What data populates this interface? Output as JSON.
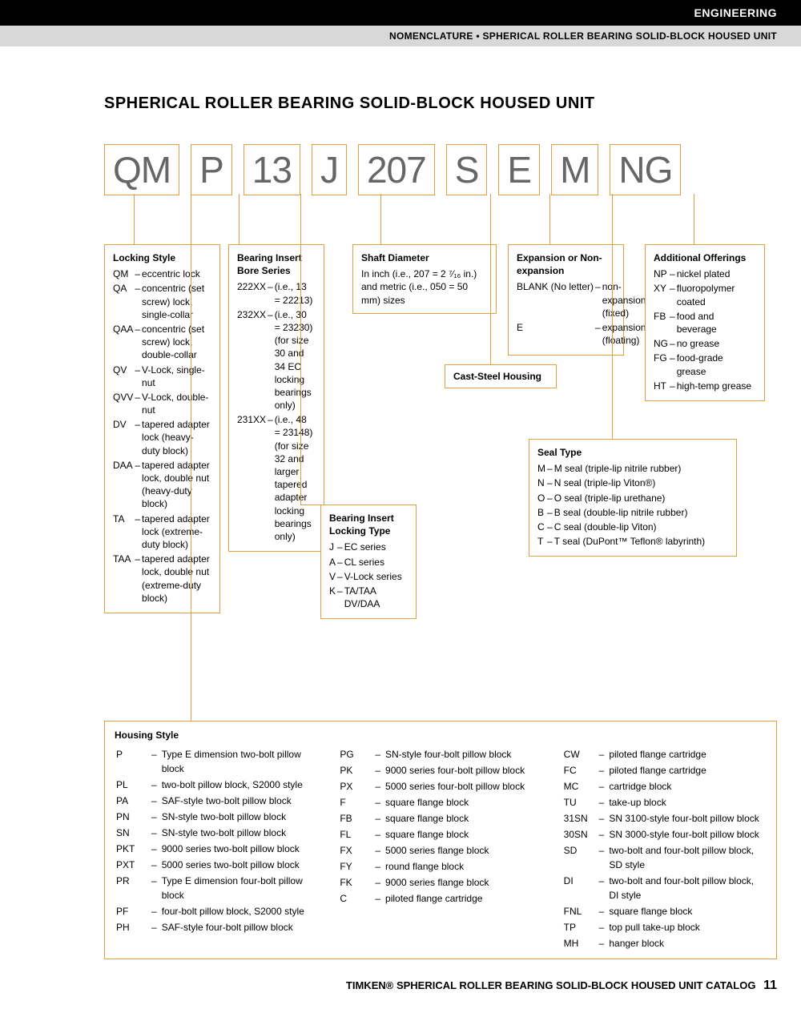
{
  "header": {
    "black": "ENGINEERING",
    "gray": "NOMENCLATURE • SPHERICAL ROLLER BEARING SOLID-BLOCK HOUSED UNIT"
  },
  "main_title": "SPHERICAL ROLLER BEARING SOLID-BLOCK HOUSED UNIT",
  "code_boxes": [
    "QM",
    "P",
    "13",
    "J",
    "207",
    "S",
    "E",
    "M",
    "NG"
  ],
  "colors": {
    "accent": "#e0a040",
    "code_text": "#666666"
  },
  "callouts": {
    "locking_style": {
      "title": "Locking Style",
      "items": [
        [
          "QM",
          "eccentric lock"
        ],
        [
          "QA",
          "concentric (set screw) lock, single-collar"
        ],
        [
          "QAA",
          "concentric (set screw) lock, double-collar"
        ],
        [
          "QV",
          "V-Lock, single-nut"
        ],
        [
          "QVV",
          "V-Lock, double-nut"
        ],
        [
          "DV",
          "tapered adapter lock (heavy-duty block)"
        ],
        [
          "DAA",
          "tapered adapter lock, double nut (heavy-duty block)"
        ],
        [
          "TA",
          "tapered adapter lock (extreme-duty block)"
        ],
        [
          "TAA",
          "tapered adapter lock, double nut (extreme-duty block)"
        ]
      ]
    },
    "bore_series": {
      "title": "Bearing Insert Bore Series",
      "items": [
        [
          "222XX",
          "(i.e., 13 = 22213)"
        ],
        [
          "232XX",
          "(i.e., 30 = 23230) (for size 30 and 34 EC locking bearings only)"
        ],
        [
          "231XX",
          "(i.e., 48 = 23148) (for size 32 and larger tapered adapter locking bearings only)"
        ]
      ]
    },
    "shaft_diameter": {
      "title": "Shaft Diameter",
      "text": "In inch (i.e., 207 = 2 ⁷⁄₁₆ in.) and metric (i.e., 050 = 50 mm) sizes"
    },
    "expansion": {
      "title": "Expansion or Non-expansion",
      "items": [
        [
          "BLANK (No letter)",
          "non-expansion (fixed)"
        ],
        [
          "E",
          "expansion (floating)"
        ]
      ]
    },
    "additional": {
      "title": "Additional Offerings",
      "items": [
        [
          "NP",
          "nickel plated"
        ],
        [
          "XY",
          "fluoropolymer coated"
        ],
        [
          "FB",
          "food and beverage"
        ],
        [
          "NG",
          "no grease"
        ],
        [
          "FG",
          "food-grade grease"
        ],
        [
          "HT",
          "high-temp grease"
        ]
      ]
    },
    "cast_steel": {
      "title": "Cast-Steel Housing"
    },
    "seal_type": {
      "title": "Seal Type",
      "items": [
        [
          "M",
          "M seal (triple-lip nitrile rubber)"
        ],
        [
          "N",
          "N seal (triple-lip Viton®)"
        ],
        [
          "O",
          "O seal (triple-lip urethane)"
        ],
        [
          "B",
          "B seal (double-lip nitrile rubber)"
        ],
        [
          "C",
          "C seal (double-lip Viton)"
        ],
        [
          "T",
          "T seal (DuPont™ Teflon® labyrinth)"
        ]
      ]
    },
    "locking_type": {
      "title": "Bearing Insert Locking Type",
      "items": [
        [
          "J",
          "EC series"
        ],
        [
          "A",
          "CL series"
        ],
        [
          "V",
          "V-Lock series"
        ],
        [
          "K",
          "TA/TAA DV/DAA"
        ]
      ]
    },
    "housing_style": {
      "title": "Housing Style",
      "columns": [
        [
          [
            "P",
            "Type E dimension two-bolt pillow block"
          ],
          [
            "PL",
            "two-bolt pillow block, S2000 style"
          ],
          [
            "PA",
            "SAF-style two-bolt pillow block"
          ],
          [
            "PN",
            "SN-style two-bolt pillow block"
          ],
          [
            "SN",
            "SN-style two-bolt pillow block"
          ],
          [
            "PKT",
            "9000 series two-bolt pillow block"
          ],
          [
            "PXT",
            "5000 series two-bolt pillow block"
          ],
          [
            "PR",
            "Type E dimension four-bolt pillow block"
          ],
          [
            "PF",
            "four-bolt pillow block, S2000 style"
          ],
          [
            "PH",
            "SAF-style four-bolt pillow block"
          ]
        ],
        [
          [
            "PG",
            "SN-style four-bolt pillow block"
          ],
          [
            "PK",
            "9000 series four-bolt pillow block"
          ],
          [
            "PX",
            "5000 series four-bolt pillow block"
          ],
          [
            "F",
            "square flange block"
          ],
          [
            "FB",
            "square flange block"
          ],
          [
            "FL",
            "square flange block"
          ],
          [
            "FX",
            "5000 series flange block"
          ],
          [
            "FY",
            "round flange block"
          ],
          [
            "FK",
            "9000 series flange block"
          ],
          [
            "C",
            "piloted flange cartridge"
          ]
        ],
        [
          [
            "CW",
            "piloted flange cartridge"
          ],
          [
            "FC",
            "piloted flange cartridge"
          ],
          [
            "MC",
            "cartridge block"
          ],
          [
            "TU",
            "take-up block"
          ],
          [
            "31SN",
            "SN 3100-style four-bolt pillow block"
          ],
          [
            "30SN",
            "SN 3000-style four-bolt pillow block"
          ],
          [
            "SD",
            "two-bolt and four-bolt pillow block, SD style"
          ],
          [
            "DI",
            "two-bolt and four-bolt pillow block, DI style"
          ],
          [
            "FNL",
            "square flange block"
          ],
          [
            "TP",
            "top pull take-up block"
          ],
          [
            "MH",
            "hanger block"
          ]
        ]
      ]
    }
  },
  "footer": {
    "text": "TIMKEN® SPHERICAL ROLLER BEARING SOLID-BLOCK HOUSED UNIT CATALOG",
    "page": "11"
  }
}
